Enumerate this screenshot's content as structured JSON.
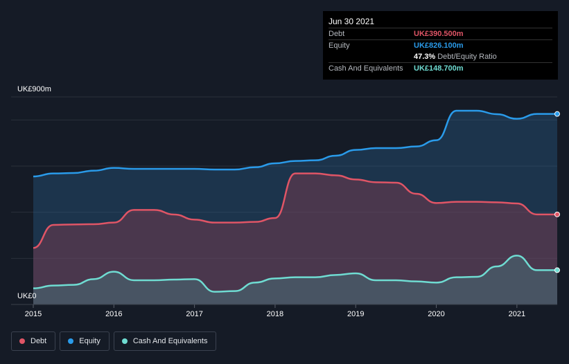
{
  "tooltip": {
    "date": "Jun 30 2021",
    "debt_label": "Debt",
    "debt_value": "UK£390.500m",
    "equity_label": "Equity",
    "equity_value": "UK£826.100m",
    "ratio_value": "47.3%",
    "ratio_label": "Debt/Equity Ratio",
    "cash_label": "Cash And Equivalents",
    "cash_value": "UK£148.700m"
  },
  "axis": {
    "y_top_label": "UK£900m",
    "y_bottom_label": "UK£0"
  },
  "legend": {
    "debt": "Debt",
    "equity": "Equity",
    "cash": "Cash And Equivalents"
  },
  "colors": {
    "debt": "#e05566",
    "equity": "#2a9bea",
    "cash": "#6fdcd2",
    "background": "#151b26",
    "grid": "#2a303b"
  },
  "chart_data": {
    "type": "area",
    "title": "",
    "xlabel": "",
    "ylabel": "",
    "ylim": [
      0,
      900
    ],
    "x_ticks": [
      "2015",
      "2016",
      "2017",
      "2018",
      "2019",
      "2020",
      "2021"
    ],
    "grid": true,
    "legend_position": "bottom-left",
    "series": [
      {
        "name": "Equity",
        "x": [
          2015.0,
          2015.25,
          2015.5,
          2015.75,
          2016.0,
          2016.25,
          2016.5,
          2016.75,
          2017.0,
          2017.25,
          2017.5,
          2017.75,
          2018.0,
          2018.25,
          2018.5,
          2018.75,
          2019.0,
          2019.25,
          2019.5,
          2019.75,
          2020.0,
          2020.25,
          2020.5,
          2020.75,
          2021.0,
          2021.25,
          2021.5
        ],
        "values": [
          555,
          568,
          570,
          580,
          592,
          588,
          588,
          588,
          588,
          585,
          585,
          595,
          612,
          622,
          625,
          645,
          670,
          678,
          678,
          685,
          712,
          840,
          840,
          825,
          805,
          826,
          826
        ]
      },
      {
        "name": "Debt",
        "x": [
          2015.0,
          2015.25,
          2015.5,
          2015.75,
          2016.0,
          2016.25,
          2016.5,
          2016.75,
          2017.0,
          2017.25,
          2017.5,
          2017.75,
          2018.0,
          2018.25,
          2018.5,
          2018.75,
          2019.0,
          2019.25,
          2019.5,
          2019.75,
          2020.0,
          2020.25,
          2020.5,
          2020.75,
          2021.0,
          2021.25,
          2021.5
        ],
        "values": [
          245,
          345,
          347,
          348,
          355,
          410,
          410,
          390,
          368,
          355,
          355,
          358,
          375,
          568,
          568,
          560,
          542,
          530,
          528,
          480,
          440,
          445,
          445,
          443,
          438,
          390.5,
          390.5
        ]
      },
      {
        "name": "Cash And Equivalents",
        "x": [
          2015.0,
          2015.25,
          2015.5,
          2015.75,
          2016.0,
          2016.25,
          2016.5,
          2016.75,
          2017.0,
          2017.25,
          2017.5,
          2017.75,
          2018.0,
          2018.25,
          2018.5,
          2018.75,
          2019.0,
          2019.25,
          2019.5,
          2019.75,
          2020.0,
          2020.25,
          2020.5,
          2020.75,
          2021.0,
          2021.25,
          2021.5
        ],
        "values": [
          70,
          82,
          85,
          110,
          142,
          105,
          105,
          108,
          110,
          55,
          58,
          95,
          113,
          118,
          118,
          128,
          135,
          105,
          105,
          100,
          95,
          118,
          120,
          165,
          212,
          148.7,
          148.7
        ]
      }
    ]
  }
}
